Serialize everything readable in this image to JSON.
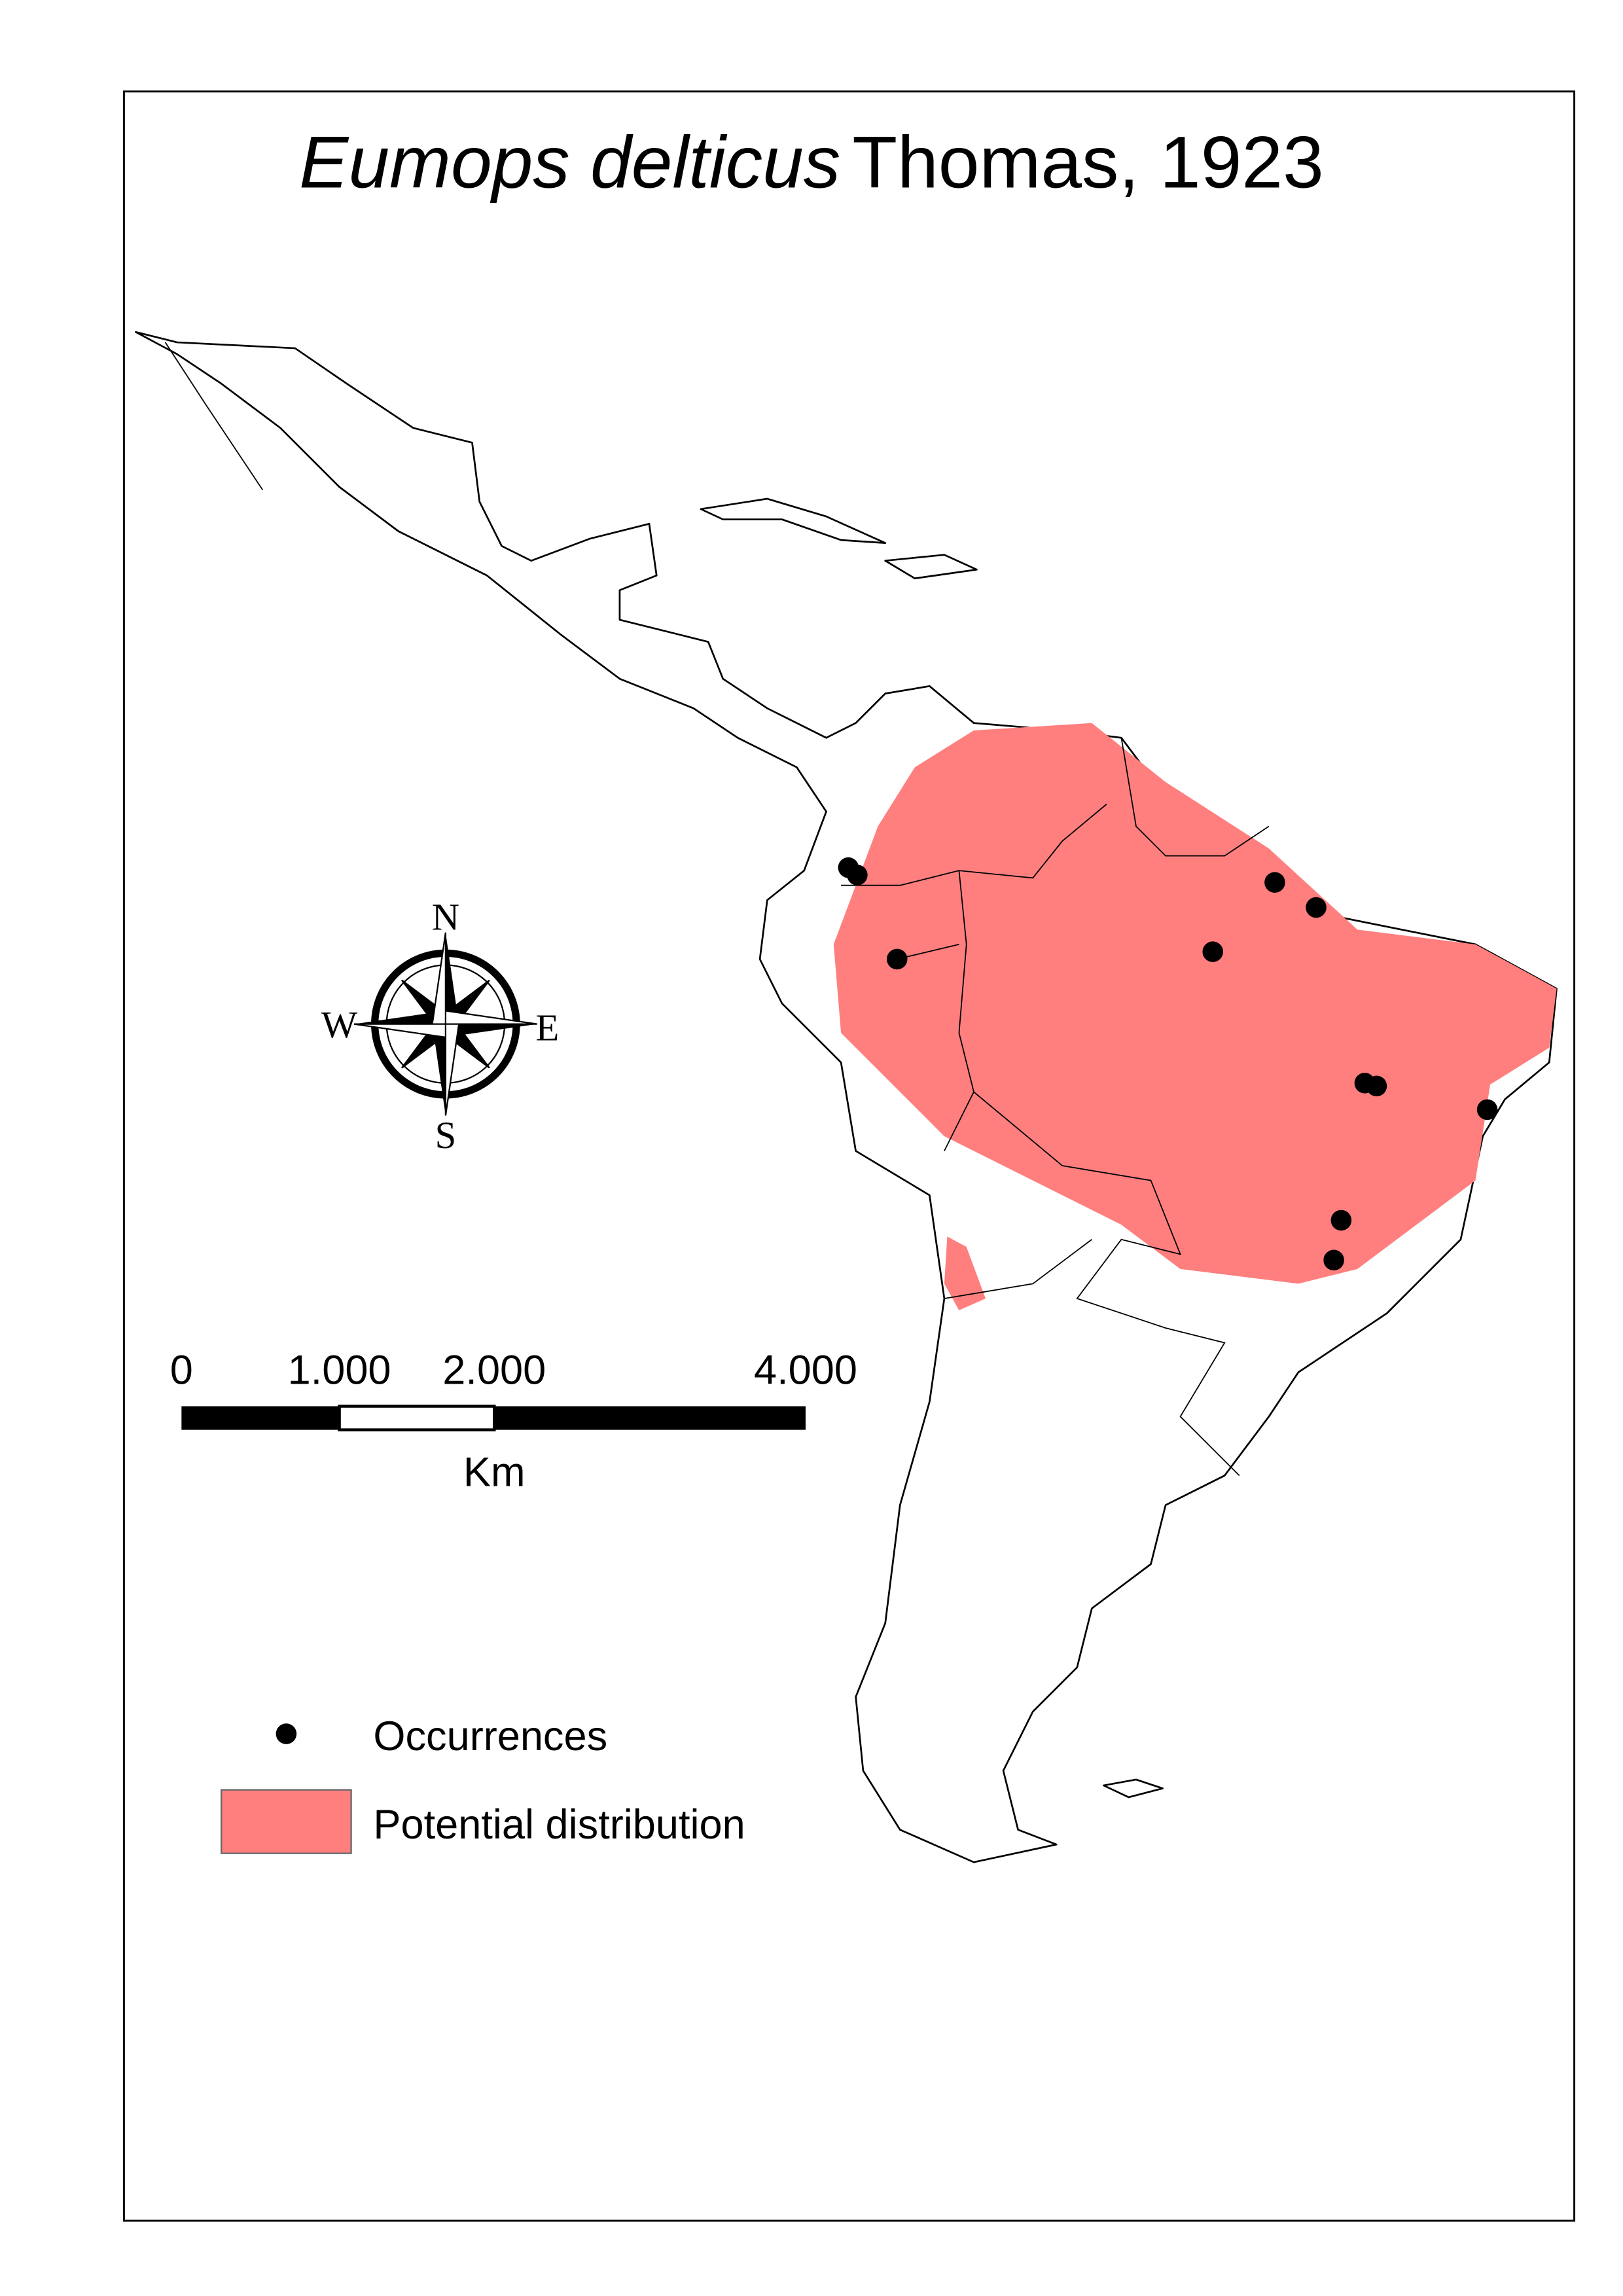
{
  "title": {
    "species": "Eumops delticus",
    "authority": "Thomas, 1923"
  },
  "compass": {
    "north": "N",
    "south": "S",
    "east": "E",
    "west": "W"
  },
  "scale_bar": {
    "labels": [
      "0",
      "1.000",
      "2.000",
      "4.000"
    ],
    "unit": "Km"
  },
  "legend": {
    "occurrences": "Occurrences",
    "distribution": "Potential distribution"
  }
}
